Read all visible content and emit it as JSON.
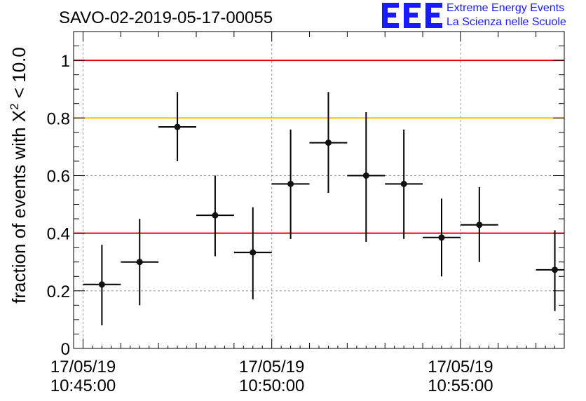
{
  "chart_data": {
    "type": "scatter",
    "title": "SAVO-02-2019-05-17-00055",
    "ylabel": "fraction of events with X² < 10.0",
    "ylabel_parts": {
      "prefix": "fraction of events with ",
      "symbol": "X",
      "superscript": "2",
      "suffix": " < 10.0"
    },
    "xlabel": "",
    "ylim": [
      0,
      1.1
    ],
    "y_ticks": [
      0,
      0.2,
      0.4,
      0.6,
      0.8,
      1
    ],
    "y_tick_labels": [
      "0",
      "0.2",
      "0.4",
      "0.6",
      "0.8",
      "1"
    ],
    "x_ticks": [
      {
        "date": "17/05/19",
        "time": "10:45:00",
        "minutes": 0
      },
      {
        "date": "17/05/19",
        "time": "10:50:00",
        "minutes": 5
      },
      {
        "date": "17/05/19",
        "time": "10:55:00",
        "minutes": 10
      }
    ],
    "grid": true,
    "reference_lines": [
      {
        "y": 1.0,
        "color": "#e8000b"
      },
      {
        "y": 0.8,
        "color": "#ffc000"
      },
      {
        "y": 0.4,
        "color": "#e8000b"
      }
    ],
    "points": [
      {
        "x": "10:45:30",
        "y": 0.222,
        "y_low": 0.08,
        "y_high": 0.36
      },
      {
        "x": "10:46:30",
        "y": 0.3,
        "y_low": 0.15,
        "y_high": 0.45
      },
      {
        "x": "10:47:30",
        "y": 0.769,
        "y_low": 0.65,
        "y_high": 0.89
      },
      {
        "x": "10:48:30",
        "y": 0.462,
        "y_low": 0.32,
        "y_high": 0.6
      },
      {
        "x": "10:49:30",
        "y": 0.333,
        "y_low": 0.17,
        "y_high": 0.49
      },
      {
        "x": "10:50:30",
        "y": 0.571,
        "y_low": 0.38,
        "y_high": 0.76
      },
      {
        "x": "10:51:30",
        "y": 0.714,
        "y_low": 0.54,
        "y_high": 0.89
      },
      {
        "x": "10:52:30",
        "y": 0.6,
        "y_low": 0.37,
        "y_high": 0.82
      },
      {
        "x": "10:53:30",
        "y": 0.571,
        "y_low": 0.38,
        "y_high": 0.76
      },
      {
        "x": "10:54:30",
        "y": 0.385,
        "y_low": 0.25,
        "y_high": 0.52
      },
      {
        "x": "10:55:30",
        "y": 0.429,
        "y_low": 0.3,
        "y_high": 0.56
      },
      {
        "x": "10:57:30",
        "y": 0.273,
        "y_low": 0.13,
        "y_high": 0.41
      }
    ],
    "x_range": [
      "10:44:45",
      "10:57:45"
    ]
  },
  "logo": {
    "mark": "EEE",
    "line1": "Extreme Energy Events",
    "line2": "La Scienza nelle Scuole",
    "color": "#1a1aff"
  }
}
